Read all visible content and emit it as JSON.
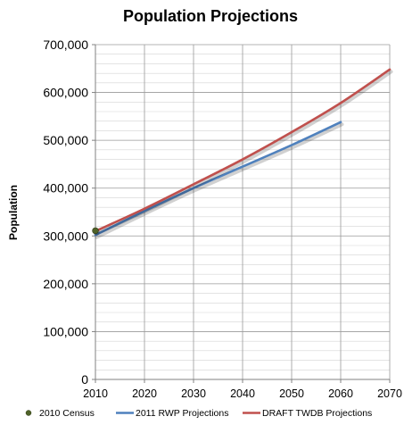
{
  "chart_data": {
    "type": "line",
    "title": "Population Projections",
    "xlabel": "",
    "ylabel": "Population",
    "xlim": [
      2010,
      2070
    ],
    "ylim": [
      0,
      700000
    ],
    "x_ticks": [
      2010,
      2020,
      2030,
      2040,
      2050,
      2060,
      2070
    ],
    "y_ticks": [
      0,
      100000,
      200000,
      300000,
      400000,
      500000,
      600000,
      700000
    ],
    "y_tick_labels": [
      "0",
      "100,000",
      "200,000",
      "300,000",
      "400,000",
      "500,000",
      "600,000",
      "700,000"
    ],
    "grid": {
      "major": true,
      "minor_horizontal": true,
      "minor_step": 20000
    },
    "legend_position": "bottom",
    "series": [
      {
        "name": "2010 Census",
        "type": "scatter",
        "color": "#4f6228",
        "x": [
          2010
        ],
        "y": [
          311000
        ]
      },
      {
        "name": "2011 RWP Projections",
        "type": "line",
        "color": "#4f81bd",
        "x": [
          2010,
          2020,
          2030,
          2040,
          2050,
          2060
        ],
        "y": [
          302000,
          352000,
          400000,
          445000,
          490000,
          538000
        ]
      },
      {
        "name": "DRAFT TWDB Projections",
        "type": "line",
        "color": "#c0504d",
        "x": [
          2010,
          2020,
          2030,
          2040,
          2050,
          2060,
          2070
        ],
        "y": [
          310000,
          357000,
          408000,
          460000,
          517000,
          578000,
          648000
        ]
      }
    ]
  }
}
